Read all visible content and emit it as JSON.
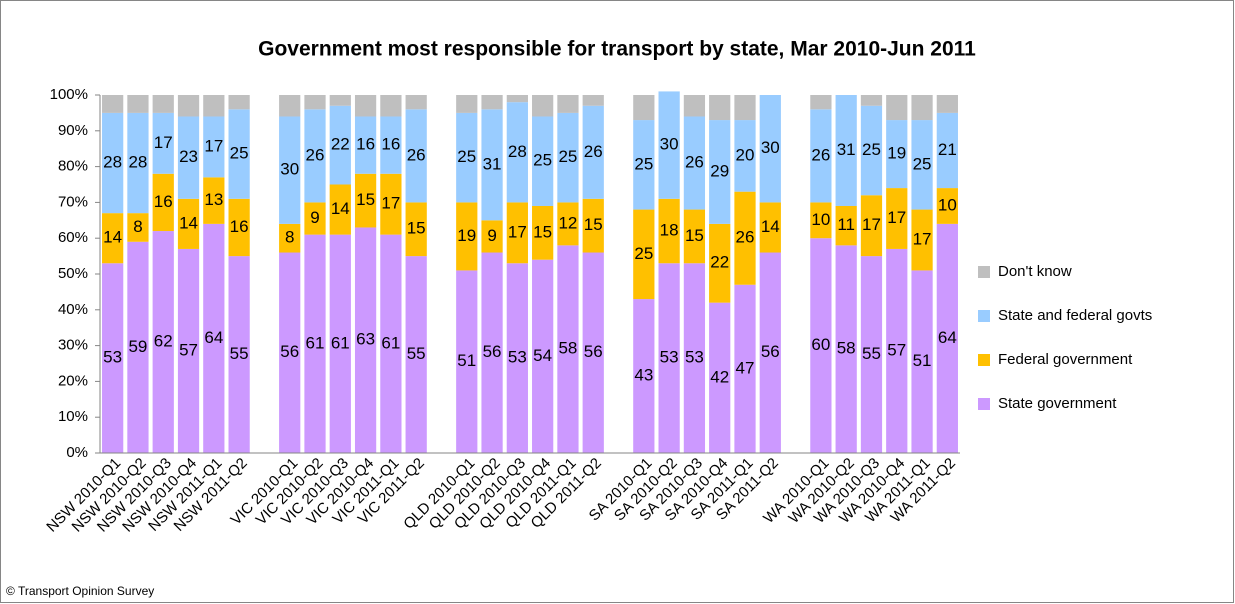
{
  "chart_data": {
    "type": "stacked_bar",
    "title": "Government most responsible for transport by state, Mar 2010-Jun 2011",
    "footnote": "© Transport Opinion Survey",
    "categories": [
      "NSW 2010-Q1",
      "NSW 2010-Q2",
      "NSW 2010-Q3",
      "NSW 2010-Q4",
      "NSW 2011-Q1",
      "NSW 2011-Q2",
      null,
      "VIC 2010-Q1",
      "VIC 2010-Q2",
      "VIC 2010-Q3",
      "VIC 2010-Q4",
      "VIC 2011-Q1",
      "VIC 2011-Q2",
      null,
      "QLD 2010-Q1",
      "QLD 2010-Q2",
      "QLD 2010-Q3",
      "QLD 2010-Q4",
      "QLD 2011-Q1",
      "QLD 2011-Q2",
      null,
      "SA 2010-Q1",
      "SA 2010-Q2",
      "SA 2010-Q3",
      "SA 2010-Q4",
      "SA 2011-Q1",
      "SA 2011-Q2",
      null,
      "WA 2010-Q1",
      "WA 2010-Q2",
      "WA 2010-Q3",
      "WA 2010-Q4",
      "WA 2011-Q1",
      "WA 2011-Q2"
    ],
    "series": [
      {
        "name": "State government",
        "color": "#cc99ff",
        "data_labels": true,
        "values": [
          53,
          59,
          62,
          57,
          64,
          55,
          null,
          56,
          61,
          61,
          63,
          61,
          55,
          null,
          51,
          56,
          53,
          54,
          58,
          56,
          null,
          43,
          53,
          53,
          42,
          47,
          56,
          null,
          60,
          58,
          55,
          57,
          51,
          64
        ]
      },
      {
        "name": "Federal government",
        "color": "#ffc000",
        "data_labels": true,
        "values": [
          14,
          8,
          16,
          14,
          13,
          16,
          null,
          8,
          9,
          14,
          15,
          17,
          15,
          null,
          19,
          9,
          17,
          15,
          12,
          15,
          null,
          25,
          18,
          15,
          22,
          26,
          14,
          null,
          10,
          11,
          17,
          17,
          17,
          10
        ]
      },
      {
        "name": "State and federal govts",
        "color": "#99ccff",
        "data_labels": true,
        "values": [
          28,
          28,
          17,
          23,
          17,
          25,
          null,
          30,
          26,
          22,
          16,
          16,
          26,
          null,
          25,
          31,
          28,
          25,
          25,
          26,
          null,
          25,
          30,
          26,
          29,
          20,
          30,
          null,
          26,
          31,
          25,
          19,
          25,
          21
        ]
      },
      {
        "name": "Don't know",
        "color": "#bfbfbf",
        "data_labels": false,
        "values": [
          5,
          5,
          5,
          6,
          6,
          4,
          null,
          6,
          4,
          3,
          6,
          6,
          4,
          null,
          5,
          4,
          2,
          6,
          5,
          3,
          null,
          7,
          0,
          6,
          7,
          7,
          0,
          null,
          4,
          0,
          3,
          7,
          7,
          5
        ]
      }
    ],
    "ylim": [
      0,
      100
    ],
    "yticks": [
      {
        "value": 0,
        "label": "0%"
      },
      {
        "value": 10,
        "label": "10%"
      },
      {
        "value": 20,
        "label": "20%"
      },
      {
        "value": 30,
        "label": "30%"
      },
      {
        "value": 40,
        "label": "40%"
      },
      {
        "value": 50,
        "label": "50%"
      },
      {
        "value": 60,
        "label": "60%"
      },
      {
        "value": 70,
        "label": "70%"
      },
      {
        "value": 80,
        "label": "80%"
      },
      {
        "value": 90,
        "label": "90%"
      },
      {
        "value": 100,
        "label": "100%"
      }
    ],
    "grid": false,
    "legend": "right"
  }
}
